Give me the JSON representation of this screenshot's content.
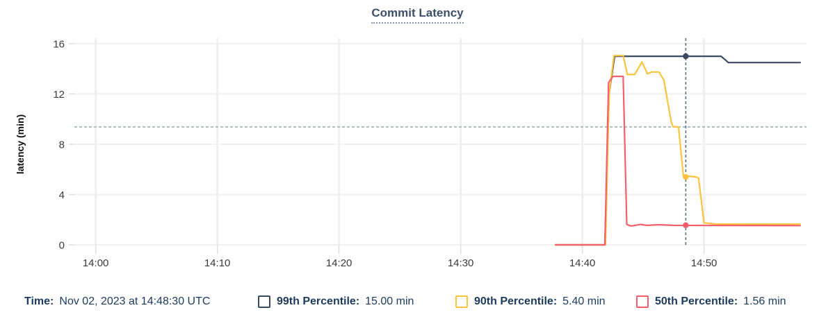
{
  "title": {
    "text": "Commit Latency"
  },
  "legend": {
    "time_label": "Time:",
    "time_value": "Nov 02, 2023 at 14:48:30 UTC",
    "items": [
      {
        "label": "99th Percentile:",
        "value": "15.00 min",
        "color": "#3a4a60"
      },
      {
        "label": "90th Percentile:",
        "value": "5.40 min",
        "color": "#fbc43e"
      },
      {
        "label": "50th Percentile:",
        "value": "1.56 min",
        "color": "#f3606c"
      }
    ]
  },
  "chart_data": {
    "type": "line",
    "title": "Commit Latency",
    "xlabel": "",
    "ylabel": "latency (min)",
    "ylim": [
      0,
      16
    ],
    "y_ticks": [
      0,
      4,
      8,
      12,
      16
    ],
    "x_ticks": [
      {
        "minutes": 0,
        "label": "14:00"
      },
      {
        "minutes": 10,
        "label": "14:10"
      },
      {
        "minutes": 20,
        "label": "14:20"
      },
      {
        "minutes": 30,
        "label": "14:30"
      },
      {
        "minutes": 40,
        "label": "14:40"
      },
      {
        "minutes": 50,
        "label": "14:50"
      }
    ],
    "x_domain_minutes_after_1400": [
      -1.75,
      58.4
    ],
    "grid": true,
    "legend_position": "bottom",
    "threshold_line": {
      "value": 9.38,
      "color": "#a2b5b8",
      "style": "dashed"
    },
    "cursor": {
      "minutes": 48.5,
      "time_label": "Nov 02, 2023 at 14:48:30 UTC",
      "color": "#5d7085"
    },
    "series": [
      {
        "name": "99th Percentile",
        "color": "#3a4a60",
        "cursor_value_min": 15.0,
        "points": [
          [
            37.8,
            0
          ],
          [
            41.85,
            0
          ],
          [
            42.2,
            12.0
          ],
          [
            42.65,
            15.0
          ],
          [
            51.4,
            15.0
          ],
          [
            52.0,
            14.5
          ],
          [
            57.9,
            14.5
          ]
        ]
      },
      {
        "name": "90th Percentile",
        "color": "#fbc43e",
        "cursor_value_min": 5.4,
        "points": [
          [
            37.8,
            0
          ],
          [
            41.9,
            0
          ],
          [
            42.2,
            12.0
          ],
          [
            42.6,
            15.05
          ],
          [
            43.35,
            15.05
          ],
          [
            43.7,
            13.55
          ],
          [
            44.3,
            13.55
          ],
          [
            44.9,
            14.55
          ],
          [
            45.35,
            13.6
          ],
          [
            45.7,
            13.75
          ],
          [
            46.3,
            13.75
          ],
          [
            46.7,
            13.1
          ],
          [
            47.3,
            9.8
          ],
          [
            47.45,
            9.4
          ],
          [
            47.9,
            9.38
          ],
          [
            48.3,
            5.5
          ],
          [
            49.35,
            5.4
          ],
          [
            49.55,
            5.3
          ],
          [
            50.0,
            1.75
          ],
          [
            51.0,
            1.65
          ],
          [
            57.9,
            1.65
          ]
        ]
      },
      {
        "name": "50th Percentile",
        "color": "#f3606c",
        "cursor_value_min": 1.56,
        "points": [
          [
            37.8,
            0
          ],
          [
            41.85,
            0
          ],
          [
            42.15,
            12.9
          ],
          [
            42.5,
            13.4
          ],
          [
            43.35,
            13.4
          ],
          [
            43.65,
            1.62
          ],
          [
            44.0,
            1.5
          ],
          [
            44.8,
            1.62
          ],
          [
            45.3,
            1.55
          ],
          [
            46.3,
            1.6
          ],
          [
            47.5,
            1.55
          ],
          [
            57.9,
            1.53
          ]
        ]
      }
    ]
  },
  "style_colors": {
    "gridline": "#eef0f2",
    "tick_mark": "#dcdee1",
    "axis_text": "#3a3a3a",
    "axis_title": "#111111",
    "legend_text": "#1b3a5e",
    "title_text": "#3d4f68"
  }
}
